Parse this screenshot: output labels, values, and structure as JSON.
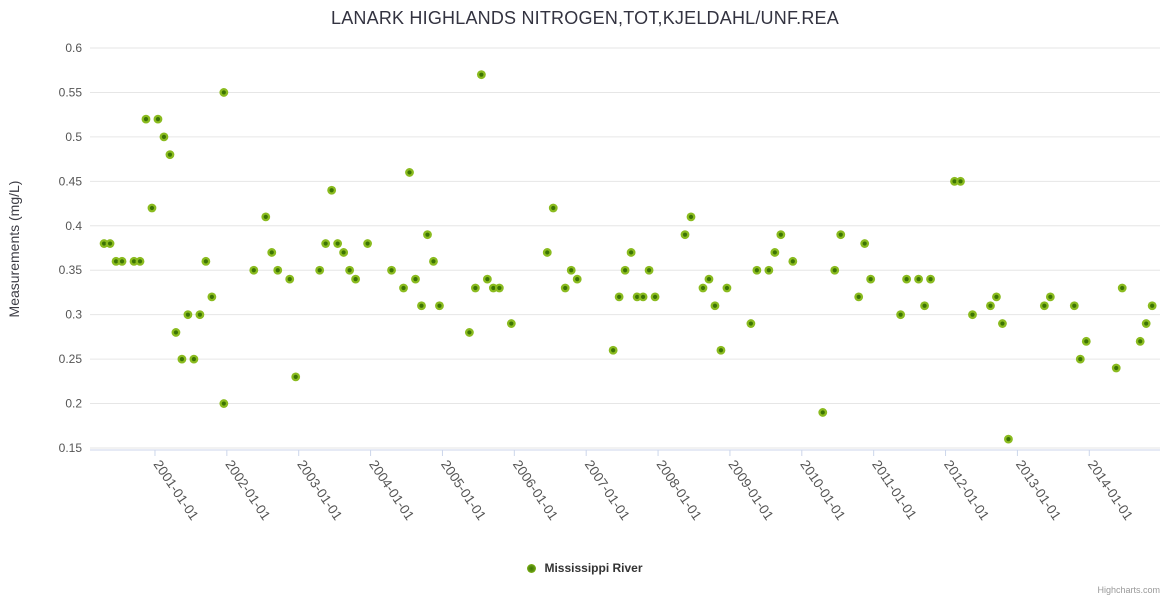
{
  "title": "LANARK HIGHLANDS NITROGEN,TOT,KJELDAHL/UNF.REA",
  "legend": {
    "series_label": "Mississippi River"
  },
  "credits": "Highcharts.com",
  "colors": {
    "marker_outer": "#8abb1f",
    "marker_inner": "#3c7404",
    "grid_line": "#e6e6e6",
    "axis_line": "#ccd6eb",
    "tick_label": "#555555",
    "title_text": "#333340",
    "credits_text": "#999999"
  },
  "chart_data": {
    "type": "scatter",
    "title": "LANARK HIGHLANDS NITROGEN,TOT,KJELDAHL/UNF.REA",
    "xlabel": "",
    "ylabel": "Measurements (mg/L)",
    "legend_position": "bottom",
    "grid": true,
    "ylim": [
      0.15,
      0.6
    ],
    "y_ticks": [
      0.6,
      0.55,
      0.5,
      0.45,
      0.4,
      0.35,
      0.3,
      0.25,
      0.2,
      0.15
    ],
    "x_tick_labels": [
      "2001-01-01",
      "2002-01-01",
      "2003-01-01",
      "2004-01-01",
      "2005-01-01",
      "2006-01-01",
      "2007-01-01",
      "2008-01-01",
      "2009-01-01",
      "2010-01-01",
      "2011-01-01",
      "2012-01-01",
      "2013-01-01",
      "2014-01-01"
    ],
    "x_range_yearfrac": [
      2000.096,
      2014.984
    ],
    "series": [
      {
        "name": "Mississippi River",
        "points": [
          {
            "date": "2000-04",
            "value": 0.38
          },
          {
            "date": "2000-05",
            "value": 0.38
          },
          {
            "date": "2000-06",
            "value": 0.36
          },
          {
            "date": "2000-07",
            "value": 0.36
          },
          {
            "date": "2000-09",
            "value": 0.36
          },
          {
            "date": "2000-10",
            "value": 0.36
          },
          {
            "date": "2000-11",
            "value": 0.52
          },
          {
            "date": "2000-12",
            "value": 0.42
          },
          {
            "date": "2001-01",
            "value": 0.52
          },
          {
            "date": "2001-02",
            "value": 0.5
          },
          {
            "date": "2001-03",
            "value": 0.48
          },
          {
            "date": "2001-04",
            "value": 0.28
          },
          {
            "date": "2001-05",
            "value": 0.25
          },
          {
            "date": "2001-06",
            "value": 0.3
          },
          {
            "date": "2001-07",
            "value": 0.25
          },
          {
            "date": "2001-08",
            "value": 0.3
          },
          {
            "date": "2001-09",
            "value": 0.36
          },
          {
            "date": "2001-10",
            "value": 0.32
          },
          {
            "date": "2001-12",
            "value": 0.2
          },
          {
            "date": "2001-12",
            "value": 0.55
          },
          {
            "date": "2002-05",
            "value": 0.35
          },
          {
            "date": "2002-07",
            "value": 0.41
          },
          {
            "date": "2002-08",
            "value": 0.37
          },
          {
            "date": "2002-09",
            "value": 0.35
          },
          {
            "date": "2002-11",
            "value": 0.34
          },
          {
            "date": "2002-12",
            "value": 0.23
          },
          {
            "date": "2003-04",
            "value": 0.35
          },
          {
            "date": "2003-05",
            "value": 0.38
          },
          {
            "date": "2003-06",
            "value": 0.44
          },
          {
            "date": "2003-07",
            "value": 0.38
          },
          {
            "date": "2003-08",
            "value": 0.37
          },
          {
            "date": "2003-09",
            "value": 0.35
          },
          {
            "date": "2003-10",
            "value": 0.34
          },
          {
            "date": "2003-12",
            "value": 0.38
          },
          {
            "date": "2004-04",
            "value": 0.35
          },
          {
            "date": "2004-06",
            "value": 0.33
          },
          {
            "date": "2004-07",
            "value": 0.46
          },
          {
            "date": "2004-08",
            "value": 0.34
          },
          {
            "date": "2004-09",
            "value": 0.31
          },
          {
            "date": "2004-10",
            "value": 0.39
          },
          {
            "date": "2004-11",
            "value": 0.36
          },
          {
            "date": "2004-12",
            "value": 0.31
          },
          {
            "date": "2005-05",
            "value": 0.28
          },
          {
            "date": "2005-06",
            "value": 0.33
          },
          {
            "date": "2005-07",
            "value": 0.57
          },
          {
            "date": "2005-08",
            "value": 0.34
          },
          {
            "date": "2005-09",
            "value": 0.33
          },
          {
            "date": "2005-10",
            "value": 0.33
          },
          {
            "date": "2005-12",
            "value": 0.29
          },
          {
            "date": "2006-06",
            "value": 0.37
          },
          {
            "date": "2006-07",
            "value": 0.42
          },
          {
            "date": "2006-09",
            "value": 0.33
          },
          {
            "date": "2006-10",
            "value": 0.35
          },
          {
            "date": "2006-11",
            "value": 0.34
          },
          {
            "date": "2007-05",
            "value": 0.26
          },
          {
            "date": "2007-06",
            "value": 0.32
          },
          {
            "date": "2007-07",
            "value": 0.35
          },
          {
            "date": "2007-08",
            "value": 0.37
          },
          {
            "date": "2007-09",
            "value": 0.32
          },
          {
            "date": "2007-10",
            "value": 0.32
          },
          {
            "date": "2007-11",
            "value": 0.35
          },
          {
            "date": "2007-12",
            "value": 0.32
          },
          {
            "date": "2008-05",
            "value": 0.39
          },
          {
            "date": "2008-06",
            "value": 0.41
          },
          {
            "date": "2008-08",
            "value": 0.33
          },
          {
            "date": "2008-09",
            "value": 0.34
          },
          {
            "date": "2008-10",
            "value": 0.31
          },
          {
            "date": "2008-11",
            "value": 0.26
          },
          {
            "date": "2008-12",
            "value": 0.33
          },
          {
            "date": "2009-04",
            "value": 0.29
          },
          {
            "date": "2009-05",
            "value": 0.35
          },
          {
            "date": "2009-07",
            "value": 0.35
          },
          {
            "date": "2009-08",
            "value": 0.37
          },
          {
            "date": "2009-09",
            "value": 0.39
          },
          {
            "date": "2009-11",
            "value": 0.36
          },
          {
            "date": "2010-04",
            "value": 0.19
          },
          {
            "date": "2010-06",
            "value": 0.35
          },
          {
            "date": "2010-07",
            "value": 0.39
          },
          {
            "date": "2010-10",
            "value": 0.32
          },
          {
            "date": "2010-11",
            "value": 0.38
          },
          {
            "date": "2010-12",
            "value": 0.34
          },
          {
            "date": "2011-05",
            "value": 0.3
          },
          {
            "date": "2011-06",
            "value": 0.34
          },
          {
            "date": "2011-08",
            "value": 0.34
          },
          {
            "date": "2011-09",
            "value": 0.31
          },
          {
            "date": "2011-10",
            "value": 0.34
          },
          {
            "date": "2012-02",
            "value": 0.45
          },
          {
            "date": "2012-03",
            "value": 0.45
          },
          {
            "date": "2012-05",
            "value": 0.3
          },
          {
            "date": "2012-08",
            "value": 0.31
          },
          {
            "date": "2012-09",
            "value": 0.32
          },
          {
            "date": "2012-10",
            "value": 0.29
          },
          {
            "date": "2012-11",
            "value": 0.16
          },
          {
            "date": "2013-05",
            "value": 0.31
          },
          {
            "date": "2013-06",
            "value": 0.32
          },
          {
            "date": "2013-10",
            "value": 0.31
          },
          {
            "date": "2013-11",
            "value": 0.25
          },
          {
            "date": "2013-12",
            "value": 0.27
          },
          {
            "date": "2014-05",
            "value": 0.24
          },
          {
            "date": "2014-06",
            "value": 0.33
          },
          {
            "date": "2014-09",
            "value": 0.27
          },
          {
            "date": "2014-10",
            "value": 0.29
          },
          {
            "date": "2014-11",
            "value": 0.31
          }
        ]
      }
    ]
  }
}
